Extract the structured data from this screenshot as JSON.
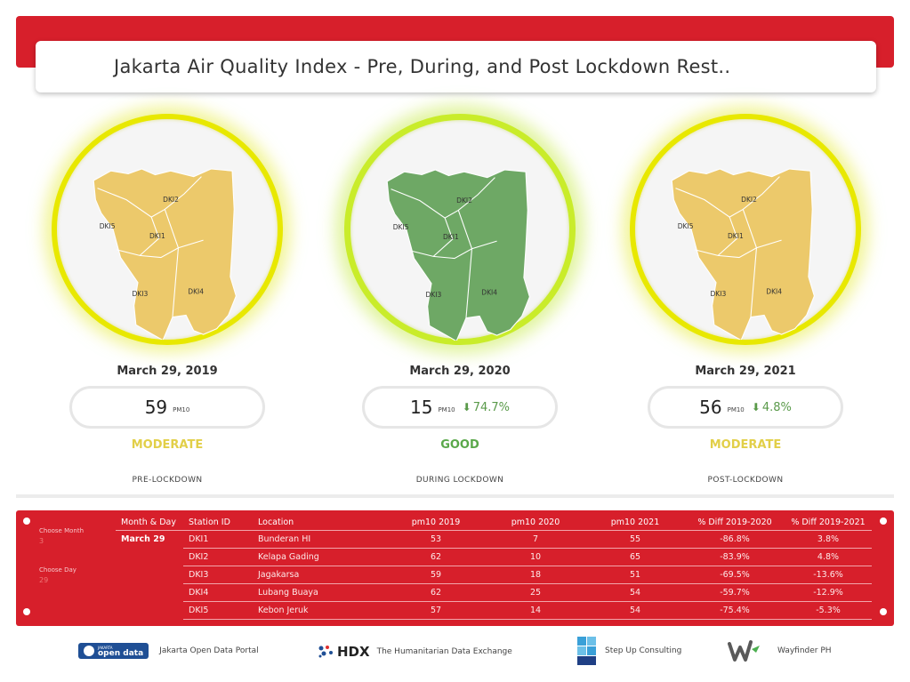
{
  "title": "Jakarta Air Quality Index - Pre, During, and Post Lockdown Rest..",
  "panels": [
    {
      "date": "March 29, 2019",
      "value": "59",
      "unit": "PM10",
      "change": "",
      "status": "MODERATE",
      "phase": "PRE-LOCKDOWN",
      "map_color": "#ecc96b",
      "status_color": "#e2cf48"
    },
    {
      "date": "March 29, 2020",
      "value": "15",
      "unit": "PM10",
      "change": "74.7%",
      "status": "GOOD",
      "phase": "DURING LOCKDOWN",
      "map_color": "#6ea865",
      "status_color": "#5aa84a"
    },
    {
      "date": "March 29, 2021",
      "value": "56",
      "unit": "PM10",
      "change": "4.8%",
      "status": "MODERATE",
      "phase": "POST-LOCKDOWN",
      "map_color": "#ecc96b",
      "status_color": "#e2cf48"
    }
  ],
  "map_labels": [
    "DKI2",
    "DKI5",
    "DKI1",
    "DKI3",
    "DKI4"
  ],
  "filters": {
    "month_label": "Choose Month",
    "month_value": "3",
    "day_label": "Choose Day",
    "day_value": "29"
  },
  "table": {
    "headers": [
      "Month & Day",
      "Station ID",
      "Location",
      "pm10 2019",
      "pm10 2020",
      "pm10 2021",
      "% Diff 2019-2020",
      "% Diff 2019-2021"
    ],
    "month_day": "March 29",
    "rows": [
      [
        "DKI1",
        "Bunderan HI",
        "53",
        "7",
        "55",
        "-86.8%",
        "3.8%"
      ],
      [
        "DKI2",
        "Kelapa Gading",
        "62",
        "10",
        "65",
        "-83.9%",
        "4.8%"
      ],
      [
        "DKI3",
        "Jagakarsa",
        "59",
        "18",
        "51",
        "-69.5%",
        "-13.6%"
      ],
      [
        "DKI4",
        "Lubang Buaya",
        "62",
        "25",
        "54",
        "-59.7%",
        "-12.9%"
      ],
      [
        "DKI5",
        "Kebon Jeruk",
        "57",
        "14",
        "54",
        "-75.4%",
        "-5.3%"
      ]
    ]
  },
  "footer": {
    "opendata_badge": "open data",
    "opendata_small": "JAKARTA",
    "opendata_label": "Jakarta Open Data Portal",
    "hdx_badge": "HDX",
    "hdx_label": "The Humanitarian Data Exchange",
    "stepup_label": "Step Up Consulting",
    "wayfinder_label": "Wayfinder PH"
  },
  "colors": {
    "brand_red": "#d71f2b",
    "good_green": "#5aa84a",
    "moderate_yellow": "#e2cf48"
  }
}
